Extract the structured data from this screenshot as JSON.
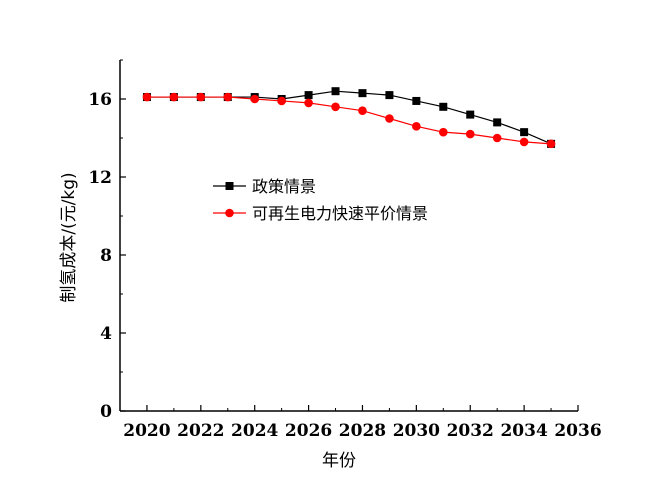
{
  "chart_data": {
    "type": "line",
    "xlabel": "年份",
    "ylabel": "制氢成本/(元/kg)",
    "xlim": [
      2019,
      2036
    ],
    "ylim": [
      0,
      18
    ],
    "xticks": [
      2020,
      2022,
      2024,
      2026,
      2028,
      2030,
      2032,
      2034,
      2036
    ],
    "yticks": [
      0,
      4,
      8,
      12,
      16
    ],
    "grid": false,
    "legend_position": "center",
    "series": [
      {
        "name": "政策情景",
        "color": "#000000",
        "marker": "square",
        "x": [
          2020,
          2021,
          2022,
          2023,
          2024,
          2025,
          2026,
          2027,
          2028,
          2029,
          2030,
          2031,
          2032,
          2033,
          2034,
          2035
        ],
        "y": [
          16.1,
          16.1,
          16.1,
          16.1,
          16.1,
          16.0,
          16.2,
          16.4,
          16.3,
          16.2,
          15.9,
          15.6,
          15.2,
          14.8,
          14.3,
          13.7
        ]
      },
      {
        "name": "可再生电力快速平价情景",
        "color": "#ff0000",
        "marker": "circle",
        "x": [
          2020,
          2021,
          2022,
          2023,
          2024,
          2025,
          2026,
          2027,
          2028,
          2029,
          2030,
          2031,
          2032,
          2033,
          2034,
          2035
        ],
        "y": [
          16.1,
          16.1,
          16.1,
          16.1,
          16.0,
          15.9,
          15.8,
          15.6,
          15.4,
          15.0,
          14.6,
          14.3,
          14.2,
          14.0,
          13.8,
          13.7
        ]
      }
    ]
  }
}
